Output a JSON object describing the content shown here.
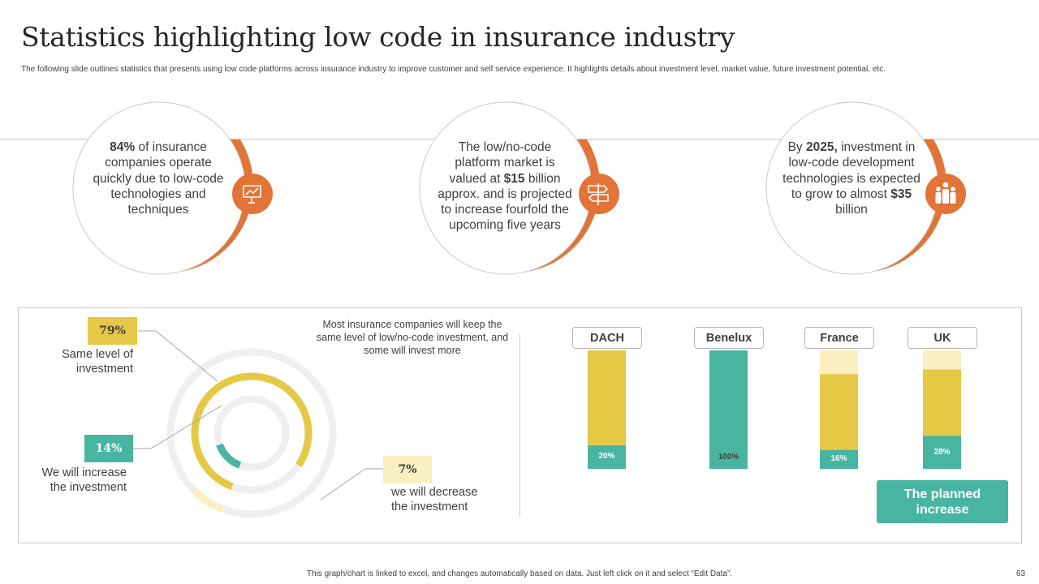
{
  "title": "Statistics highlighting low code in insurance industry",
  "subtitle": "The following slide outlines statistics that presents using low code platforms across insurance industry to improve customer and self service experience. It highlights details about investment level, market value, future investment potential, etc.",
  "stats": [
    {
      "bold": "84%",
      "text": " of insurance companies operate quickly due to low-code technologies and techniques",
      "icon": "presentation-icon"
    },
    {
      "pre": "The low/no-code platform market is valued at ",
      "bold": "$15",
      "post": " billion approx. and is projected to increase fourfold the upcoming five years",
      "icon": "signpost-icon"
    },
    {
      "pre": "By ",
      "bold": "2025,",
      "mid": " investment in low-code development technologies is expected to grow to almost ",
      "bold2": "$35",
      "post": " billion",
      "icon": "team-icon"
    }
  ],
  "donut_note": "Most insurance companies will keep the same level of low/no-code investment, and some will invest more",
  "planned_label": "The planned increase",
  "footer": "This graph/chart is linked to excel, and changes automatically based on data. Just left click on it and select “Edit Data”.",
  "page_number": "63",
  "colors": {
    "orange": "#e27438",
    "yellow": "#e5c846",
    "teal": "#48b5a1",
    "light_yellow": "#faefc1",
    "track": "#efefef"
  },
  "chart_data": [
    {
      "type": "pie",
      "title": "",
      "categories": [
        "Same level of investment",
        "We will increase the investment",
        "we will decrease the investment"
      ],
      "values": [
        79,
        14,
        7
      ],
      "labels": [
        "79%",
        "14%",
        "7%"
      ]
    },
    {
      "type": "bar",
      "title": "",
      "categories": [
        "DACH",
        "Benelux",
        "France",
        "UK"
      ],
      "series": [
        {
          "name": "The planned increase",
          "values": [
            20,
            100,
            16,
            28
          ]
        },
        {
          "name": "Same level",
          "values": [
            80,
            0,
            64,
            56
          ]
        },
        {
          "name": "Decrease",
          "values": [
            0,
            0,
            20,
            16
          ]
        }
      ],
      "value_labels": [
        "20%",
        "100%",
        "16%",
        "28%"
      ],
      "ylim": [
        0,
        100
      ]
    }
  ]
}
